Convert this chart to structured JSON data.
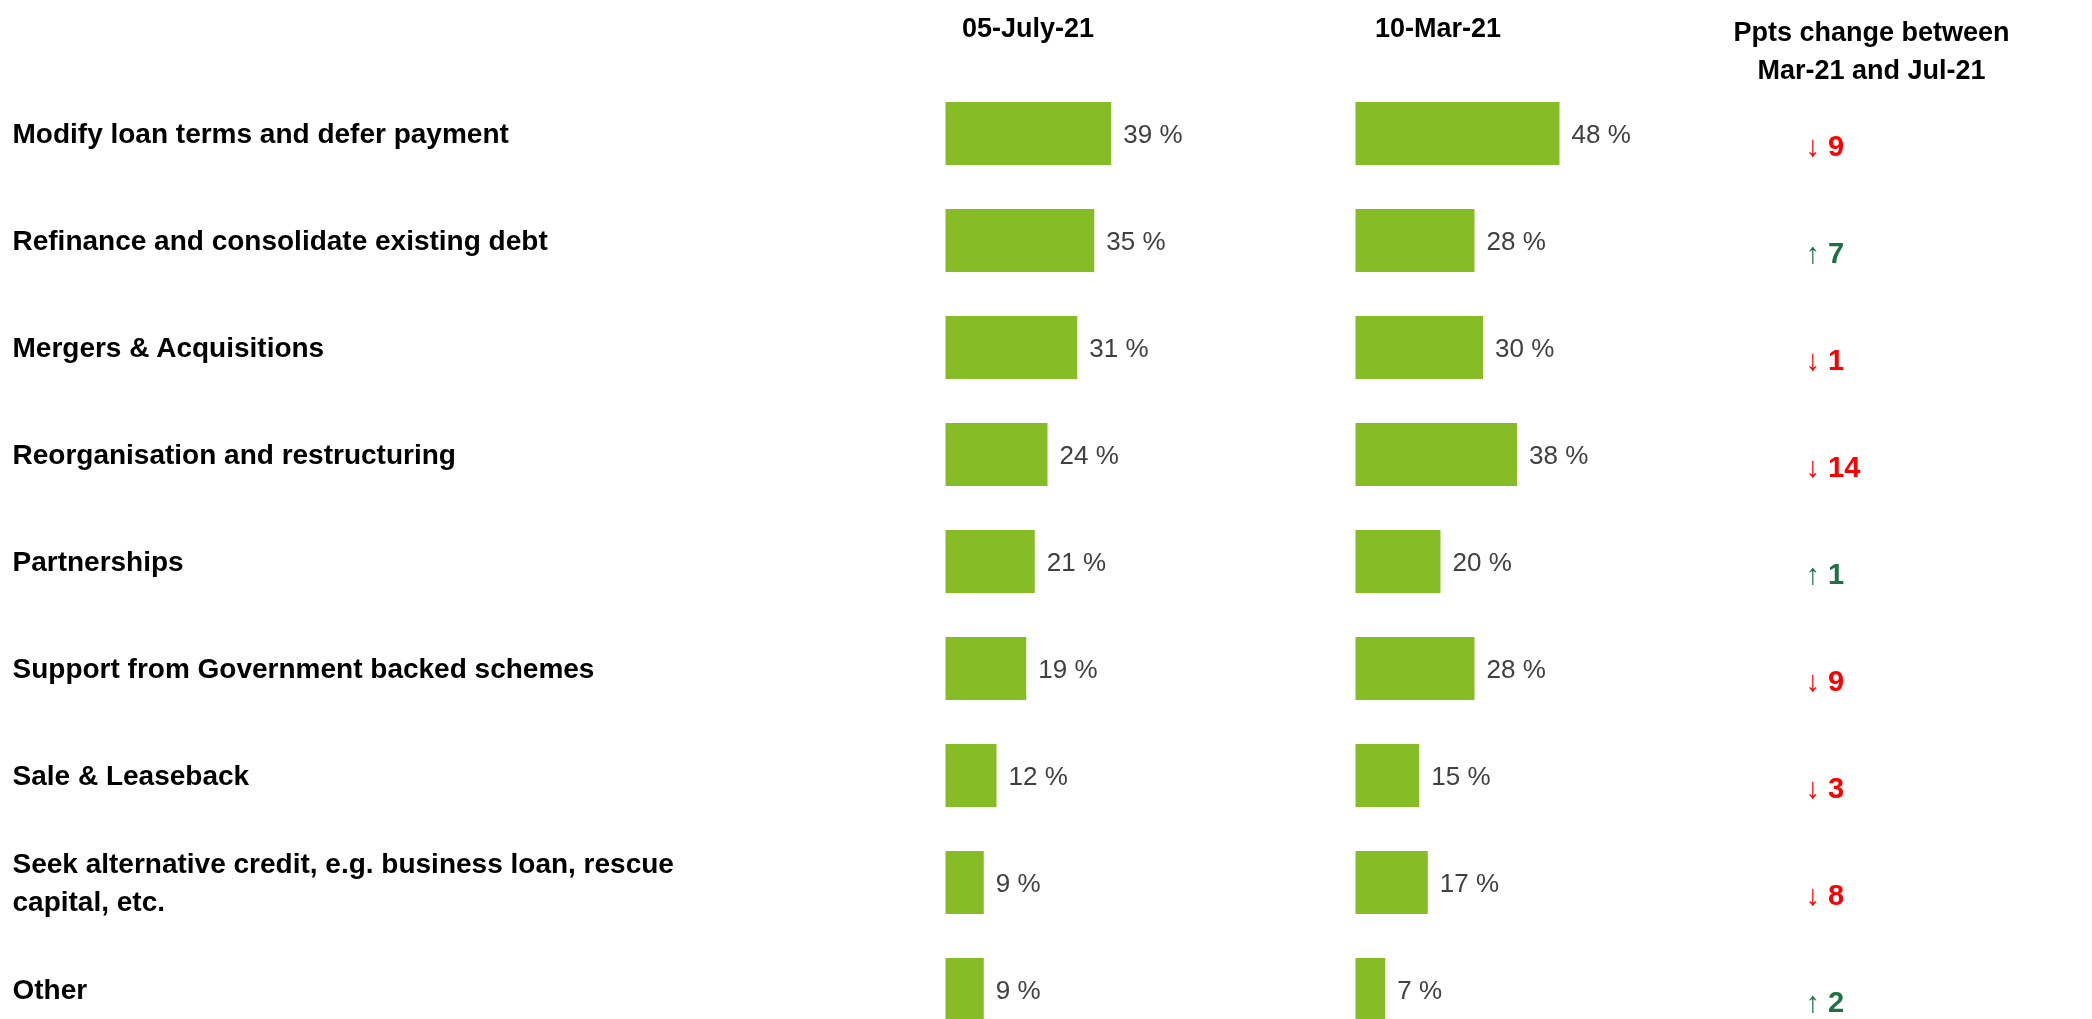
{
  "chart_data": [
    {
      "type": "bar",
      "orientation": "horizontal",
      "title": "05-July-21",
      "tick_labels": "y",
      "color": "#86bc25",
      "categories": [
        "Modify loan terms and defer payment",
        "Refinance and consolidate existing debt",
        "Mergers & Acquisitions",
        "Reorganisation and restructuring",
        "Partnerships",
        "Support from Government backed schemes",
        "Sale & Leaseback",
        "Seek alternative credit, e.g. business loan, rescue capital, etc.",
        "Other"
      ],
      "values": [
        39,
        35,
        31,
        24,
        21,
        19,
        12,
        9,
        9
      ],
      "value_labels": [
        "39 %",
        "35 %",
        "31 %",
        "24 %",
        "21 %",
        "19 %",
        "12 %",
        "9 %",
        "9 %"
      ]
    },
    {
      "type": "bar",
      "orientation": "horizontal",
      "title": "10-Mar-21",
      "tick_labels": false,
      "color": "#86bc25",
      "categories": [
        "Modify loan terms and defer payment",
        "Refinance and consolidate existing debt",
        "Mergers & Acquisitions",
        "Reorganisation and restructuring",
        "Partnerships",
        "Support from Government backed schemes",
        "Sale & Leaseback",
        "Seek alternative credit, e.g. business loan, rescue capital, etc.",
        "Other"
      ],
      "values": [
        48,
        28,
        30,
        38,
        20,
        28,
        15,
        17,
        7
      ],
      "value_labels": [
        "48 %",
        "28 %",
        "30 %",
        "38 %",
        "20 %",
        "28 %",
        "15 %",
        "17 %",
        "7 %"
      ]
    },
    {
      "type": "other",
      "title": "Ppts change between Mar-21 and Jul-21",
      "annotations": [
        "↓  9",
        "↑  7",
        "↓  1",
        "↓  14",
        "↑  1",
        "↓  9",
        "↓  3",
        "↓  8",
        "↑  2"
      ],
      "colors": [
        "#ff0000",
        "#1e7145",
        "#ff0000",
        "#ff0000",
        "#1e7145",
        "#ff0000",
        "#ff0000",
        "#ff0000",
        "#1e7145"
      ]
    }
  ]
}
